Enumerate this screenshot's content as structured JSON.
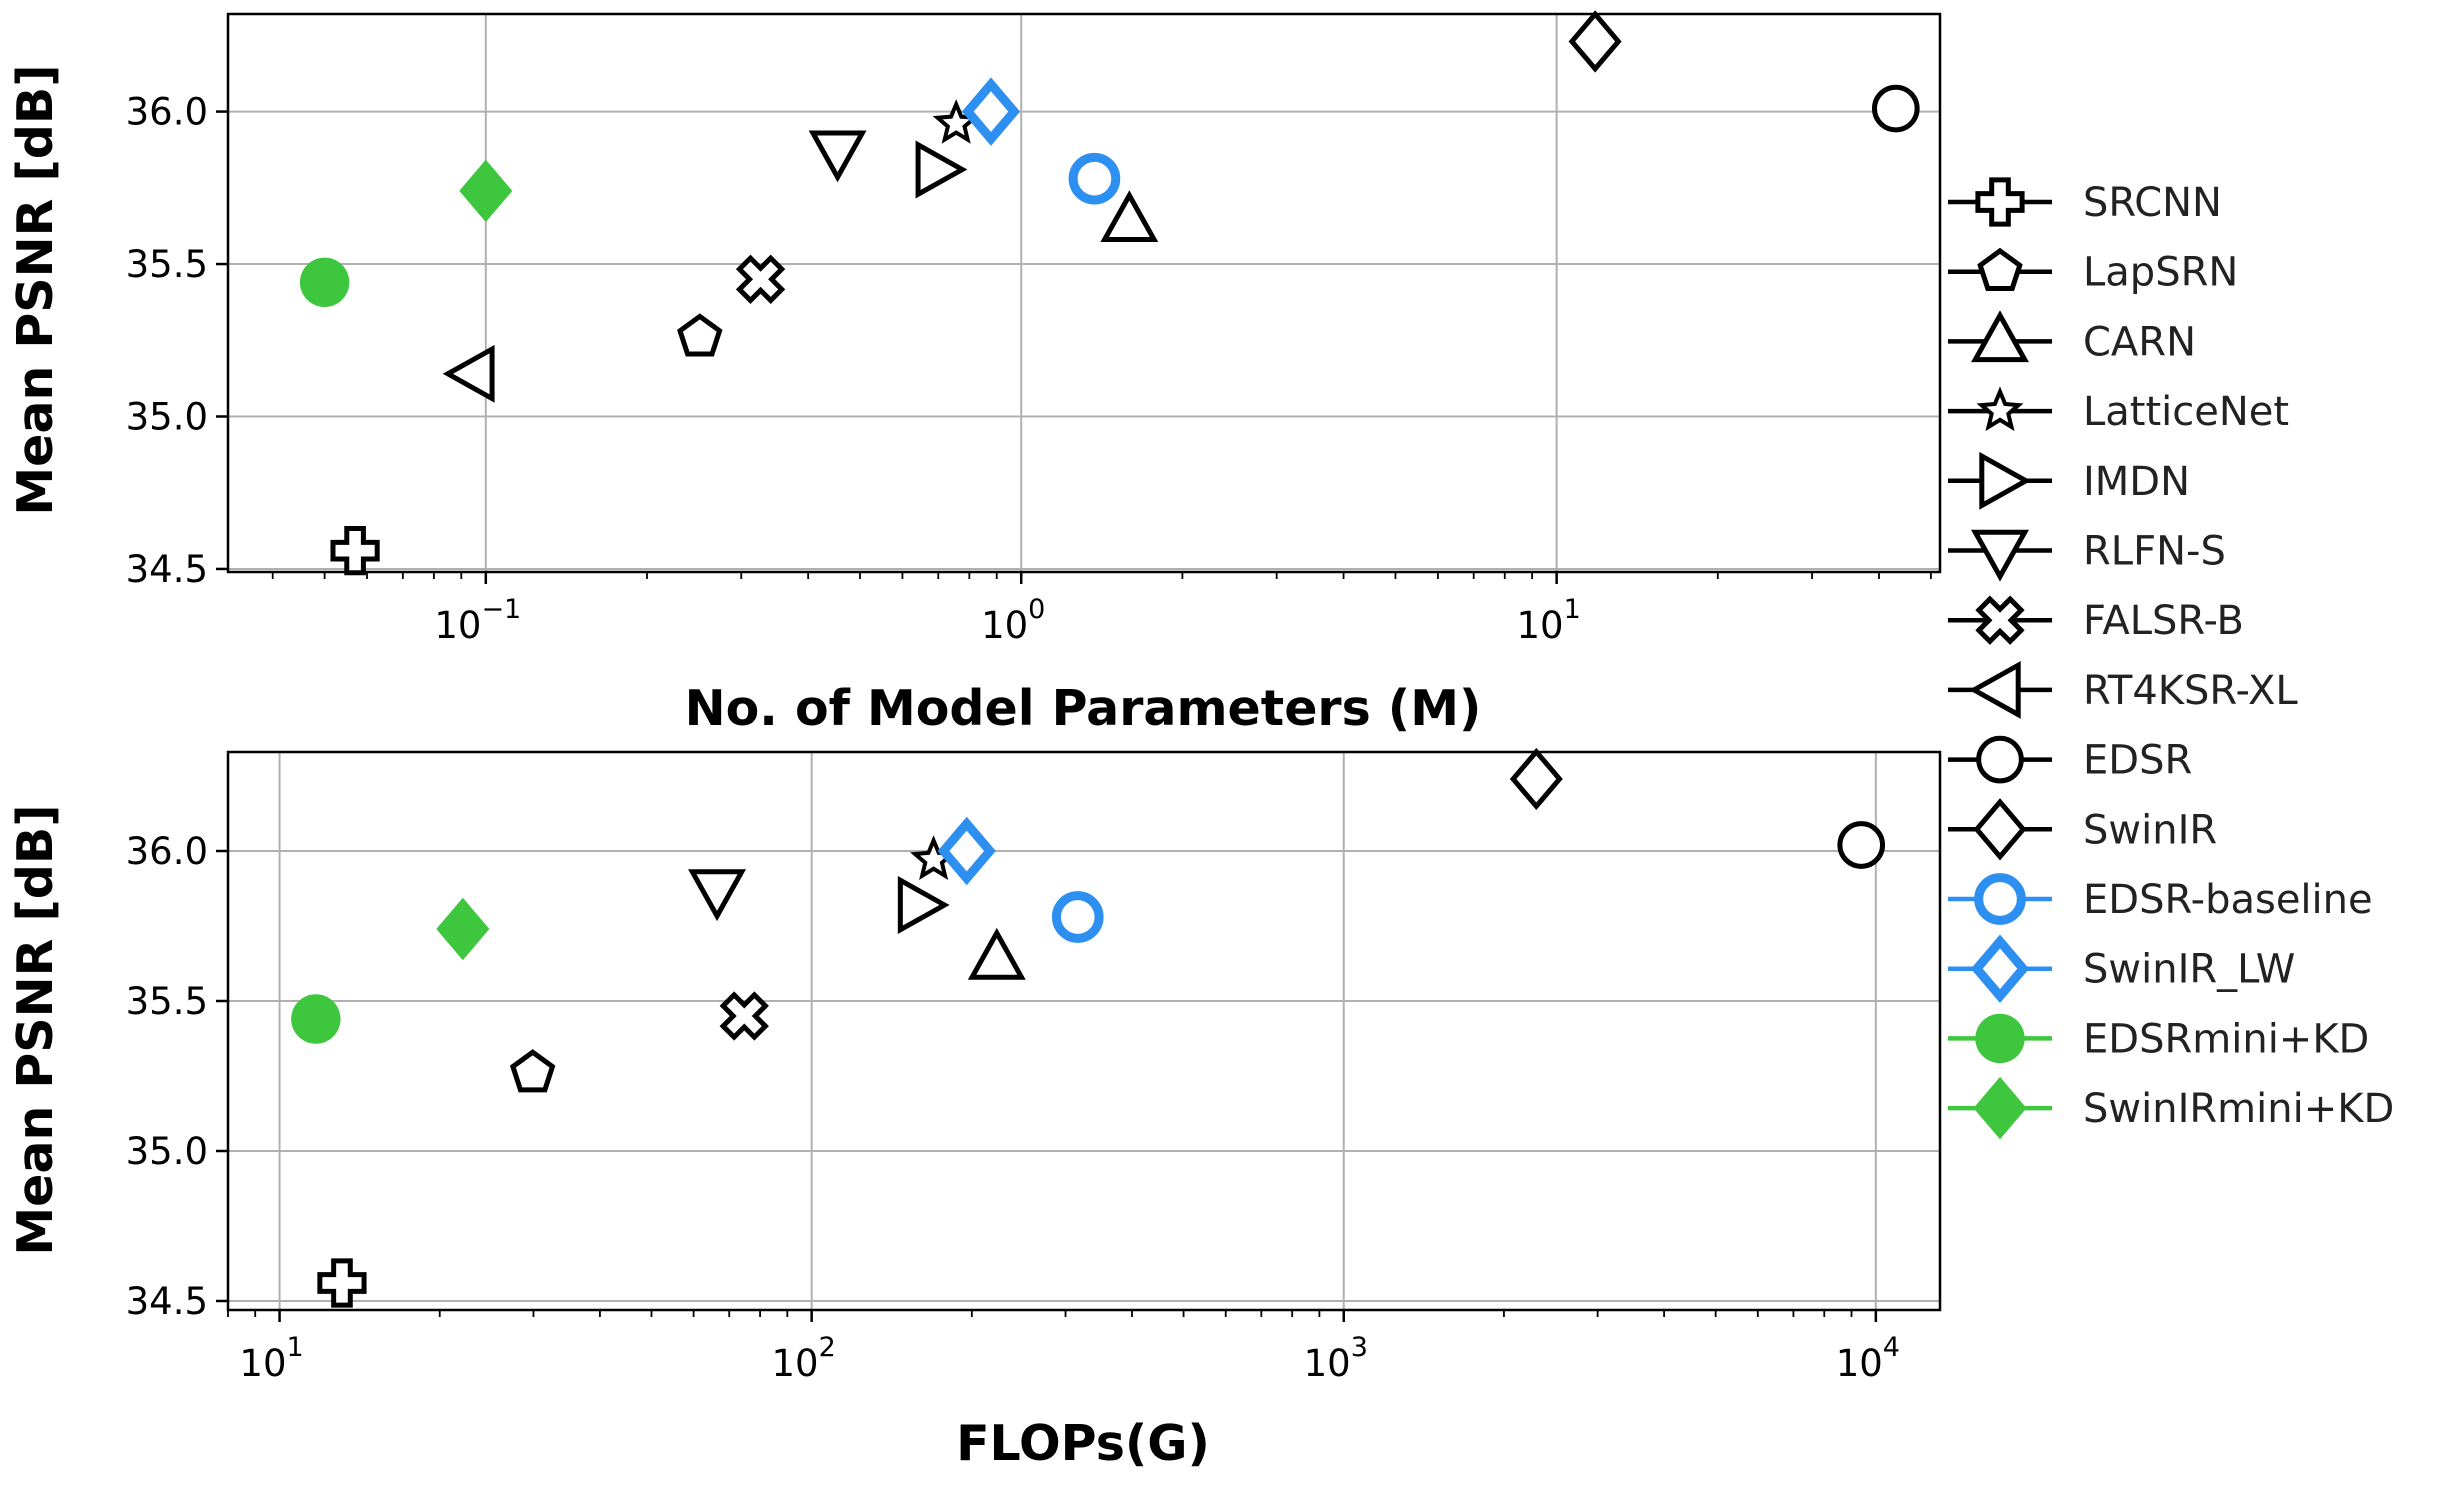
{
  "chart_data": [
    {
      "type": "scatter",
      "xlabel": "No. of Model Parameters (M)",
      "ylabel": "Mean PSNR [dB]",
      "xscale": "log",
      "xlim": [
        0.033,
        52
      ],
      "ylim": [
        34.49,
        36.32
      ],
      "xticks": [
        {
          "value": 0.1,
          "base": "10",
          "exp": "−1"
        },
        {
          "value": 1,
          "base": "10",
          "exp": "0"
        },
        {
          "value": 10,
          "base": "10",
          "exp": "1"
        }
      ],
      "yticks": [
        {
          "value": 34.5,
          "label": "34.5"
        },
        {
          "value": 35.0,
          "label": "35.0"
        },
        {
          "value": 35.5,
          "label": "35.5"
        },
        {
          "value": 36.0,
          "label": "36.0"
        }
      ],
      "grid": true,
      "points": [
        {
          "name": "SRCNN",
          "x": 0.057,
          "y": 34.56
        },
        {
          "name": "LapSRN",
          "x": 0.251,
          "y": 35.26
        },
        {
          "name": "CARN",
          "x": 1.592,
          "y": 35.64
        },
        {
          "name": "LatticeNet",
          "x": 0.756,
          "y": 35.96
        },
        {
          "name": "IMDN",
          "x": 0.694,
          "y": 35.81
        },
        {
          "name": "RLFN-S",
          "x": 0.454,
          "y": 35.87
        },
        {
          "name": "FALSR-B",
          "x": 0.326,
          "y": 35.45
        },
        {
          "name": "RT4KSR-XL",
          "x": 0.095,
          "y": 35.14
        },
        {
          "name": "EDSR",
          "x": 43.0,
          "y": 36.01
        },
        {
          "name": "SwinIR",
          "x": 11.8,
          "y": 36.23
        },
        {
          "name": "EDSR-baseline",
          "x": 1.37,
          "y": 35.78
        },
        {
          "name": "SwinIR_LW",
          "x": 0.878,
          "y": 36.0
        },
        {
          "name": "EDSRmini+KD",
          "x": 0.05,
          "y": 35.44
        },
        {
          "name": "SwinIRmini+KD",
          "x": 0.1,
          "y": 35.74
        }
      ]
    },
    {
      "type": "scatter",
      "xlabel": "FLOPs(G)",
      "ylabel": "Mean PSNR [dB]",
      "xscale": "log",
      "xlim": [
        8.0,
        13200
      ],
      "ylim": [
        34.47,
        36.33
      ],
      "xticks": [
        {
          "value": 10,
          "base": "10",
          "exp": "1"
        },
        {
          "value": 100,
          "base": "10",
          "exp": "2"
        },
        {
          "value": 1000,
          "base": "10",
          "exp": "3"
        },
        {
          "value": 10000,
          "base": "10",
          "exp": "4"
        }
      ],
      "yticks": [
        {
          "value": 34.5,
          "label": "34.5"
        },
        {
          "value": 35.0,
          "label": "35.0"
        },
        {
          "value": 35.5,
          "label": "35.5"
        },
        {
          "value": 36.0,
          "label": "36.0"
        }
      ],
      "grid": true,
      "points": [
        {
          "name": "SRCNN",
          "x": 13.1,
          "y": 34.56
        },
        {
          "name": "LapSRN",
          "x": 29.9,
          "y": 35.26
        },
        {
          "name": "CARN",
          "x": 222.8,
          "y": 35.64
        },
        {
          "name": "LatticeNet",
          "x": 169.5,
          "y": 35.97
        },
        {
          "name": "IMDN",
          "x": 158.8,
          "y": 35.82
        },
        {
          "name": "RLFN-S",
          "x": 66.4,
          "y": 35.87
        },
        {
          "name": "FALSR-B",
          "x": 74.7,
          "y": 35.45
        },
        {
          "name": "EDSR",
          "x": 9387,
          "y": 36.02
        },
        {
          "name": "SwinIR",
          "x": 2301,
          "y": 36.24
        },
        {
          "name": "EDSR-baseline",
          "x": 316.3,
          "y": 35.78
        },
        {
          "name": "SwinIR_LW",
          "x": 195.6,
          "y": 36.0
        },
        {
          "name": "EDSRmini+KD",
          "x": 11.7,
          "y": 35.44
        },
        {
          "name": "SwinIRmini+KD",
          "x": 22.1,
          "y": 35.74
        }
      ]
    }
  ],
  "legend": {
    "placement": "right",
    "entries": [
      {
        "name": "SRCNN",
        "marker": "plus",
        "color": "#000000",
        "fill": "none"
      },
      {
        "name": "LapSRN",
        "marker": "pentagon",
        "color": "#000000",
        "fill": "none"
      },
      {
        "name": "CARN",
        "marker": "triangle-up",
        "color": "#000000",
        "fill": "none"
      },
      {
        "name": "LatticeNet",
        "marker": "star",
        "color": "#000000",
        "fill": "none"
      },
      {
        "name": "IMDN",
        "marker": "triangle-right",
        "color": "#000000",
        "fill": "none"
      },
      {
        "name": "RLFN-S",
        "marker": "triangle-down",
        "color": "#000000",
        "fill": "none"
      },
      {
        "name": "FALSR-B",
        "marker": "x-filled",
        "color": "#000000",
        "fill": "none"
      },
      {
        "name": "RT4KSR-XL",
        "marker": "triangle-left",
        "color": "#000000",
        "fill": "none"
      },
      {
        "name": "EDSR",
        "marker": "circle",
        "color": "#000000",
        "fill": "none"
      },
      {
        "name": "SwinIR",
        "marker": "diamond",
        "color": "#000000",
        "fill": "none"
      },
      {
        "name": "EDSR-baseline",
        "marker": "circle",
        "color": "#2d8fef",
        "fill": "none"
      },
      {
        "name": "SwinIR_LW",
        "marker": "diamond",
        "color": "#2d8fef",
        "fill": "none"
      },
      {
        "name": "EDSRmini+KD",
        "marker": "circle",
        "color": "#3ec63e",
        "fill": "#3ec63e"
      },
      {
        "name": "SwinIRmini+KD",
        "marker": "diamond",
        "color": "#3ec63e",
        "fill": "#3ec63e"
      }
    ]
  }
}
